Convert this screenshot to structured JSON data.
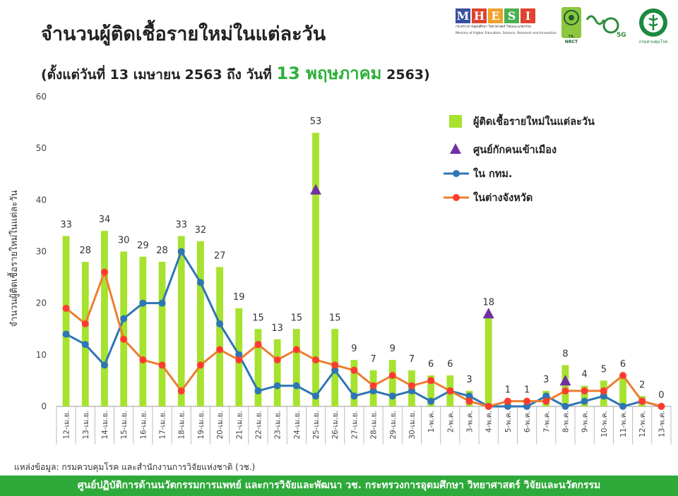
{
  "header": {
    "title": "จำนวนผู้ติดเชื้อรายใหม่ในแต่ละวัน",
    "subtitle_prefix": "(ตั้งแต่วันที่ 13 เมษายน 2563 ถึง วันที่",
    "subtitle_highlight": "13 พฤษภาคม",
    "subtitle_suffix": "2563)"
  },
  "logos": {
    "mhesi_letters": [
      "M",
      "H",
      "E",
      "S",
      "I"
    ],
    "mhesi_colors": [
      "#3a4fa0",
      "#e0422f",
      "#f0a12a",
      "#4caf50",
      "#e0422f"
    ],
    "mhesi_sub1": "กระทรวงการอุดมศึกษา วิทยาศาสตร์ วิจัยและนวัตกรรม",
    "mhesi_sub2": "Ministry of Higher Education, Science, Research and Innovation",
    "nrct_label": "วช. NRCT",
    "logo5g_label": "5G",
    "moph_label": "กรมควบคุมโรค"
  },
  "chart_data": {
    "type": "bar",
    "ylabel": "จำนวนผู้ติดเชื้อรายใหม่ในแต่ละวัน",
    "ylim": [
      0,
      60
    ],
    "yticks": [
      0,
      10,
      20,
      30,
      40,
      50,
      60
    ],
    "grid": false,
    "legend_position": "top-right",
    "categories": [
      "12-เม.ย.",
      "13-เม.ย.",
      "14-เม.ย.",
      "15-เม.ย.",
      "16-เม.ย.",
      "17-เม.ย.",
      "18-เม.ย.",
      "19-เม.ย.",
      "20-เม.ย.",
      "21-เม.ย.",
      "22-เม.ย.",
      "23-เม.ย.",
      "24-เม.ย.",
      "25-เม.ย.",
      "26-เม.ย.",
      "27-เม.ย.",
      "28-เม.ย.",
      "29-เม.ย.",
      "30-เม.ย.",
      "1-พ.ค.",
      "2-พ.ค.",
      "3-พ.ค.",
      "4-พ.ค.",
      "5-พ.ค.",
      "6-พ.ค.",
      "7-พ.ค.",
      "8-พ.ค.",
      "9-พ.ค.",
      "10-พ.ค.",
      "11-พ.ค.",
      "12-พ.ค.",
      "13-พ.ค."
    ],
    "series": [
      {
        "name": "ผู้ติดเชื้อรายใหม่ในแต่ละวัน",
        "kind": "bar",
        "color": "#a6e22e",
        "values": [
          33,
          28,
          34,
          30,
          29,
          28,
          33,
          32,
          27,
          19,
          15,
          13,
          15,
          53,
          15,
          9,
          7,
          9,
          7,
          6,
          6,
          3,
          18,
          1,
          1,
          3,
          8,
          4,
          5,
          6,
          2,
          0
        ],
        "labels": [
          "33",
          "28",
          "34",
          "30",
          "29",
          "28",
          "33",
          "32",
          "27",
          "19",
          "15",
          "13",
          "15",
          "53",
          "15",
          "9",
          "7",
          "9",
          "7",
          "6",
          "6",
          "3",
          "18",
          "1",
          "1",
          "3",
          "8",
          "4",
          "5",
          "6",
          "2",
          "0"
        ]
      },
      {
        "name": "ศูนย์กักคนเข้าเมือง",
        "kind": "triangle",
        "color": "#7030a0",
        "points": [
          {
            "x": "25-เม.ย.",
            "y": 42
          },
          {
            "x": "4-พ.ค.",
            "y": 18
          },
          {
            "x": "8-พ.ค.",
            "y": 5
          }
        ]
      },
      {
        "name": "ใน กทม.",
        "kind": "line",
        "color": "#2e75b6",
        "values": [
          14,
          12,
          8,
          17,
          20,
          20,
          30,
          24,
          16,
          10,
          3,
          4,
          4,
          2,
          7,
          2,
          3,
          2,
          3,
          1,
          3,
          2,
          0,
          0,
          0,
          2,
          0,
          1,
          2,
          0,
          1,
          0
        ]
      },
      {
        "name": "ในต่างจังหวัด",
        "kind": "line",
        "color": "#ed7d31",
        "marker_color": "#ff3b30",
        "values": [
          19,
          16,
          26,
          13,
          9,
          8,
          3,
          8,
          11,
          9,
          12,
          9,
          11,
          9,
          8,
          7,
          4,
          6,
          4,
          5,
          3,
          1,
          0,
          1,
          1,
          1,
          3,
          3,
          3,
          6,
          1,
          0
        ]
      }
    ]
  },
  "source": "แหล่งข้อมูล: กรมควบคุมโรค และสำนักงานการวิจัยแห่งชาติ (วช.)",
  "footer": "ศูนย์ปฏิบัติการด้านนวัตกรรมการแพทย์ และการวิจัยและพัฒนา  วช.   กระทรวงการอุดมศึกษา วิทยาศาสตร์ วิจัยและนวัตกรรม"
}
